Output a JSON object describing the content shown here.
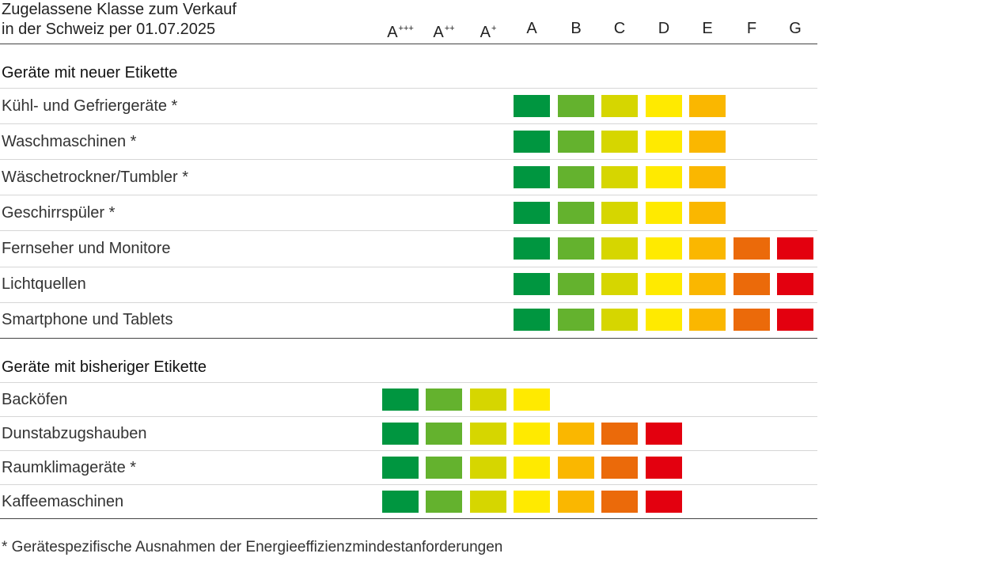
{
  "chart_data": {
    "type": "table",
    "title": [
      "Zugelassene Klasse zum Verkauf",
      "in der Schweiz per 01.07.2025"
    ],
    "columns": [
      {
        "base": "A",
        "sup": "+++"
      },
      {
        "base": "A",
        "sup": "++"
      },
      {
        "base": "A",
        "sup": "+"
      },
      {
        "base": "A",
        "sup": ""
      },
      {
        "base": "B",
        "sup": ""
      },
      {
        "base": "C",
        "sup": ""
      },
      {
        "base": "D",
        "sup": ""
      },
      {
        "base": "E",
        "sup": ""
      },
      {
        "base": "F",
        "sup": ""
      },
      {
        "base": "G",
        "sup": ""
      }
    ],
    "sections": [
      {
        "title": "Geräte mit neuer Etikette",
        "colors": [
          "#009640",
          "#64b22e",
          "#d6d600",
          "#ffea00",
          "#fab700",
          "#eb6a0a",
          "#e3000f"
        ],
        "rows": [
          {
            "label": "Kühl- und Gefriergeräte *",
            "allowed": [
              "A",
              "B",
              "C",
              "D",
              "E"
            ]
          },
          {
            "label": "Waschmaschinen *",
            "allowed": [
              "A",
              "B",
              "C",
              "D",
              "E"
            ]
          },
          {
            "label": "Wäschetrockner/Tumbler *",
            "allowed": [
              "A",
              "B",
              "C",
              "D",
              "E"
            ]
          },
          {
            "label": "Geschirrspüler *",
            "allowed": [
              "A",
              "B",
              "C",
              "D",
              "E"
            ]
          },
          {
            "label": "Fernseher und Monitore",
            "allowed": [
              "A",
              "B",
              "C",
              "D",
              "E",
              "F",
              "G"
            ]
          },
          {
            "label": "Lichtquellen",
            "allowed": [
              "A",
              "B",
              "C",
              "D",
              "E",
              "F",
              "G"
            ]
          },
          {
            "label": "Smartphone und Tablets",
            "allowed": [
              "A",
              "B",
              "C",
              "D",
              "E",
              "F",
              "G"
            ]
          }
        ]
      },
      {
        "title": "Geräte mit bisheriger Etikette",
        "colors": [
          "#009640",
          "#64b22e",
          "#d6d600",
          "#ffea00",
          "#fab700",
          "#eb6a0a",
          "#e3000f"
        ],
        "rows": [
          {
            "label": "Backöfen",
            "allowed": [
              "A+++",
              "A++",
              "A+",
              "A"
            ]
          },
          {
            "label": "Dunstabzugshauben",
            "allowed": [
              "A+++",
              "A++",
              "A+",
              "A",
              "B",
              "C",
              "D"
            ]
          },
          {
            "label": "Raumklimageräte *",
            "allowed": [
              "A+++",
              "A++",
              "A+",
              "A",
              "B",
              "C",
              "D"
            ]
          },
          {
            "label": "Kaffeemaschinen",
            "allowed": [
              "A+++",
              "A++",
              "A+",
              "A",
              "B",
              "C",
              "D"
            ]
          }
        ]
      }
    ],
    "footnote": "* Gerätespezifische Ausnahmen der Energieeffizienzmindestanforderungen"
  }
}
